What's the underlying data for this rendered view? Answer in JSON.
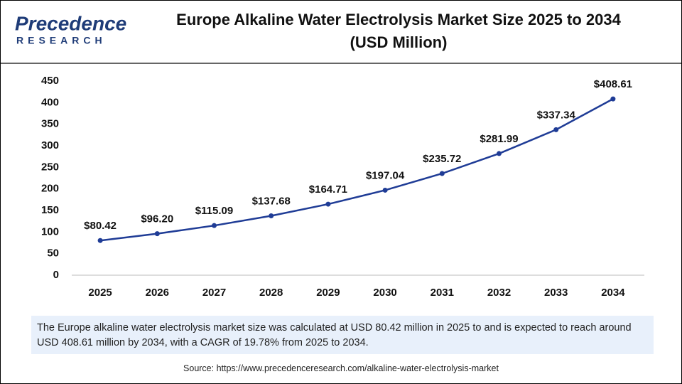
{
  "logo": {
    "name": "Precedence",
    "tagline": "RESEARCH"
  },
  "chart_data": {
    "type": "line",
    "title": "Europe Alkaline Water Electrolysis Market Size 2025 to 2034",
    "subtitle": "(USD Million)",
    "categories": [
      "2025",
      "2026",
      "2027",
      "2028",
      "2029",
      "2030",
      "2031",
      "2032",
      "2033",
      "2034"
    ],
    "values": [
      80.42,
      96.2,
      115.09,
      137.68,
      164.71,
      197.04,
      235.72,
      281.99,
      337.34,
      408.61
    ],
    "value_labels": [
      "$80.42",
      "$96.20",
      "$115.09",
      "$137.68",
      "$164.71",
      "$197.04",
      "$235.72",
      "$281.99",
      "$337.34",
      "$408.61"
    ],
    "color": "#1f3c96",
    "ylim": [
      0,
      450
    ],
    "yticks": [
      0,
      50,
      100,
      150,
      200,
      250,
      300,
      350,
      400,
      450
    ],
    "grid": false
  },
  "description": "The Europe  alkaline water electrolysis market  size was calculated at USD 80.42 million in 2025 to and is expected to reach around USD 408.61 million by 2034, with a CAGR of 19.78% from 2025 to 2034.",
  "source": "Source: https://www.precedenceresearch.com/alkaline-water-electrolysis-market"
}
